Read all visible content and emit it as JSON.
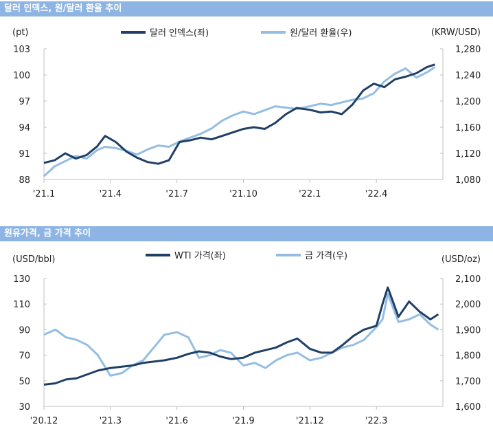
{
  "colors": {
    "header_bg": "#8db4e2",
    "dark_series": "#1f3f66",
    "light_series": "#94bde3",
    "axis": "#bfbfbf"
  },
  "chart_data": [
    {
      "type": "line",
      "title": "달러 인덱스, 원/달러 환율 추이",
      "left_unit": "(pt)",
      "right_unit": "(KRW/USD)",
      "x_ticks": [
        "'21.1",
        "'21.4",
        "'21.7",
        "'21.10",
        "'22.1",
        "'22.4"
      ],
      "x_range": [
        2021.0,
        2022.5
      ],
      "x_tick_values": [
        2021.0,
        2021.25,
        2021.5,
        2021.75,
        2022.0,
        2022.25
      ],
      "y_left": {
        "ylim": [
          88,
          103
        ],
        "ticks": [
          88,
          91,
          94,
          97,
          100,
          103
        ],
        "tick_labels": [
          "88",
          "91",
          "94",
          "97",
          "100",
          "103"
        ]
      },
      "y_right": {
        "ylim": [
          1080,
          1280
        ],
        "ticks": [
          1080,
          1120,
          1160,
          1200,
          1240,
          1280
        ],
        "tick_labels": [
          "1,080",
          "1,120",
          "1,160",
          "1,200",
          "1,240",
          "1,280"
        ]
      },
      "legend_position": "top-center",
      "series": [
        {
          "name": "달러 인덱스(좌)",
          "axis": "left",
          "color": "#1f3f66",
          "x": [
            2021.0,
            2021.04,
            2021.08,
            2021.12,
            2021.16,
            2021.2,
            2021.23,
            2021.27,
            2021.31,
            2021.35,
            2021.39,
            2021.43,
            2021.47,
            2021.51,
            2021.55,
            2021.59,
            2021.63,
            2021.67,
            2021.71,
            2021.75,
            2021.79,
            2021.83,
            2021.87,
            2021.91,
            2021.95,
            2022.0,
            2022.04,
            2022.08,
            2022.12,
            2022.16,
            2022.2,
            2022.24,
            2022.28,
            2022.32,
            2022.36,
            2022.4,
            2022.44,
            2022.47
          ],
          "values": [
            89.9,
            90.2,
            91.0,
            90.4,
            90.8,
            91.8,
            93.0,
            92.3,
            91.2,
            90.5,
            90.0,
            89.8,
            90.2,
            92.3,
            92.5,
            92.8,
            92.6,
            93.0,
            93.4,
            93.8,
            94.0,
            93.8,
            94.5,
            95.5,
            96.2,
            96.0,
            95.7,
            95.8,
            95.5,
            96.6,
            98.2,
            99.0,
            98.6,
            99.5,
            99.8,
            100.2,
            100.9,
            101.2
          ]
        },
        {
          "name": "원/달러 환율(우)",
          "axis": "right",
          "color": "#94bde3",
          "x": [
            2021.0,
            2021.04,
            2021.08,
            2021.12,
            2021.16,
            2021.2,
            2021.23,
            2021.27,
            2021.31,
            2021.35,
            2021.39,
            2021.43,
            2021.47,
            2021.51,
            2021.55,
            2021.59,
            2021.63,
            2021.67,
            2021.71,
            2021.75,
            2021.79,
            2021.83,
            2021.87,
            2021.91,
            2021.95,
            2022.0,
            2022.04,
            2022.08,
            2022.12,
            2022.16,
            2022.2,
            2022.24,
            2022.28,
            2022.32,
            2022.36,
            2022.4,
            2022.44,
            2022.47
          ],
          "values": [
            1085,
            1100,
            1108,
            1116,
            1112,
            1125,
            1130,
            1128,
            1124,
            1118,
            1126,
            1132,
            1130,
            1138,
            1144,
            1150,
            1158,
            1170,
            1178,
            1184,
            1180,
            1186,
            1192,
            1190,
            1188,
            1192,
            1196,
            1194,
            1198,
            1202,
            1204,
            1212,
            1230,
            1242,
            1250,
            1236,
            1244,
            1252
          ]
        }
      ]
    },
    {
      "type": "line",
      "title": "원유가격, 금 가격 추이",
      "left_unit": "(USD/bbl)",
      "right_unit": "(USD/oz)",
      "x_ticks": [
        "'20.12",
        "'21.3",
        "'21.6",
        "'21.9",
        "'21.12",
        "'22.3"
      ],
      "x_range": [
        2020.917,
        2022.417
      ],
      "x_tick_values": [
        2020.917,
        2021.167,
        2021.417,
        2021.667,
        2021.917,
        2022.167
      ],
      "y_left": {
        "ylim": [
          30,
          130
        ],
        "ticks": [
          30,
          50,
          70,
          90,
          110,
          130
        ],
        "tick_labels": [
          "30",
          "50",
          "70",
          "90",
          "110",
          "130"
        ]
      },
      "y_right": {
        "ylim": [
          1600,
          2100
        ],
        "ticks": [
          1600,
          1700,
          1800,
          1900,
          2000,
          2100
        ],
        "tick_labels": [
          "1,600",
          "1,700",
          "1,800",
          "1,900",
          "2,000",
          "2,100"
        ]
      },
      "legend_position": "top-center",
      "series": [
        {
          "name": "WTI 가격(좌)",
          "axis": "left",
          "color": "#1f3f66",
          "x": [
            2020.917,
            2020.96,
            2021.0,
            2021.04,
            2021.08,
            2021.12,
            2021.167,
            2021.21,
            2021.25,
            2021.29,
            2021.33,
            2021.37,
            2021.417,
            2021.46,
            2021.5,
            2021.54,
            2021.58,
            2021.62,
            2021.667,
            2021.71,
            2021.75,
            2021.79,
            2021.83,
            2021.87,
            2021.917,
            2021.96,
            2022.0,
            2022.04,
            2022.08,
            2022.12,
            2022.167,
            2022.19,
            2022.21,
            2022.25,
            2022.29,
            2022.33,
            2022.37,
            2022.4
          ],
          "values": [
            47,
            48,
            51,
            52,
            55,
            58,
            60,
            61,
            62,
            64,
            65,
            66,
            68,
            71,
            73,
            72,
            69,
            67,
            68,
            72,
            74,
            76,
            80,
            83,
            75,
            72,
            72,
            78,
            85,
            90,
            93,
            110,
            123,
            100,
            112,
            104,
            98,
            102
          ]
        },
        {
          "name": "금 가격(우)",
          "axis": "right",
          "color": "#94bde3",
          "x": [
            2020.917,
            2020.96,
            2021.0,
            2021.04,
            2021.08,
            2021.12,
            2021.167,
            2021.21,
            2021.25,
            2021.29,
            2021.33,
            2021.37,
            2021.417,
            2021.46,
            2021.5,
            2021.54,
            2021.58,
            2021.62,
            2021.667,
            2021.71,
            2021.75,
            2021.79,
            2021.83,
            2021.87,
            2021.917,
            2021.96,
            2022.0,
            2022.04,
            2022.08,
            2022.12,
            2022.167,
            2022.19,
            2022.21,
            2022.25,
            2022.29,
            2022.33,
            2022.37,
            2022.4
          ],
          "values": [
            1880,
            1900,
            1870,
            1860,
            1840,
            1800,
            1720,
            1730,
            1760,
            1780,
            1830,
            1880,
            1890,
            1870,
            1790,
            1800,
            1820,
            1810,
            1760,
            1770,
            1750,
            1780,
            1800,
            1810,
            1780,
            1790,
            1810,
            1830,
            1840,
            1860,
            1910,
            1940,
            2040,
            1930,
            1940,
            1960,
            1920,
            1900
          ]
        }
      ]
    }
  ]
}
